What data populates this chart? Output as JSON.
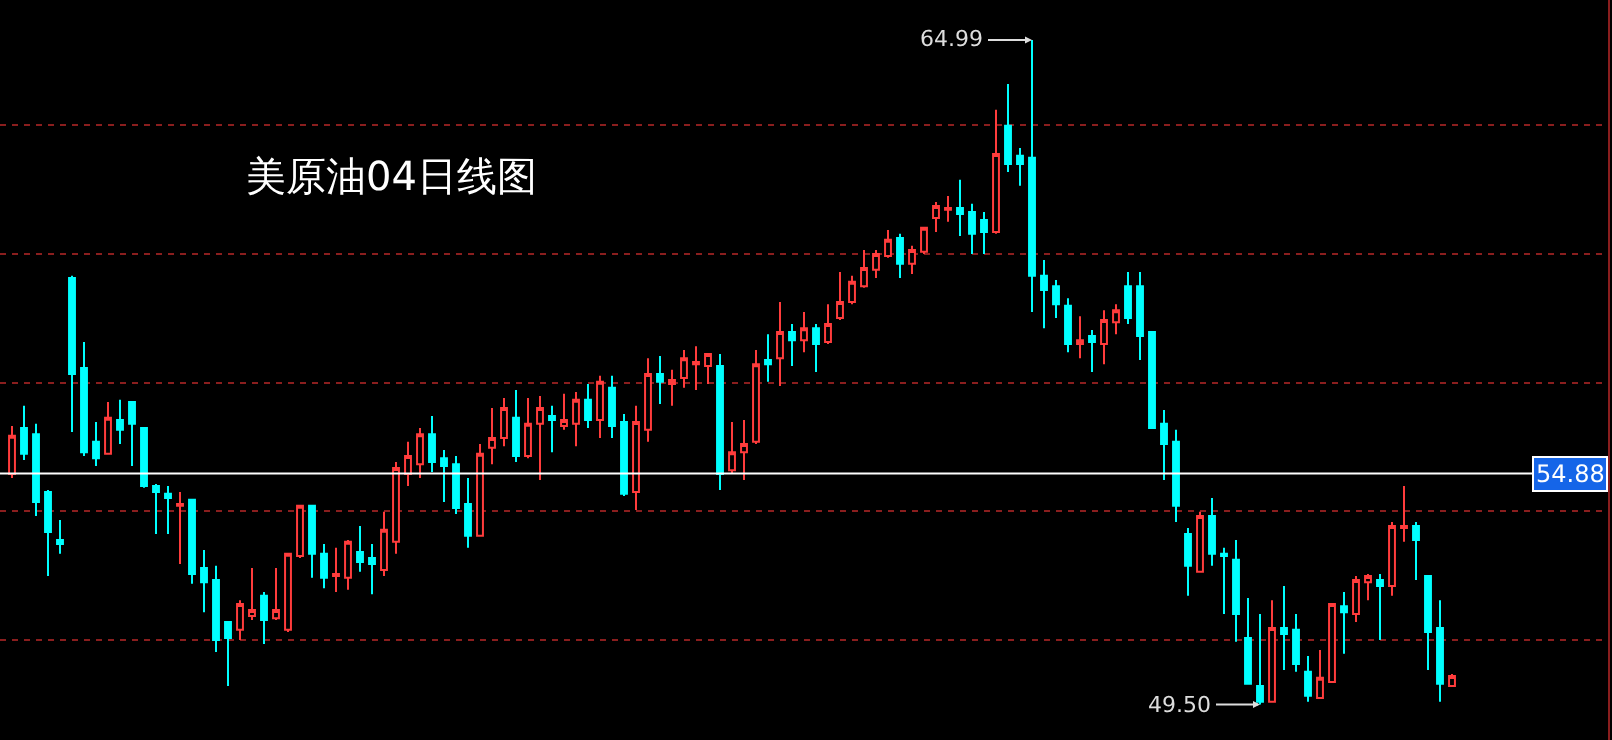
{
  "chart_data": {
    "type": "candlestick",
    "title": "美原油04日线图",
    "categories": [
      null,
      null,
      null,
      null,
      null,
      null,
      null,
      null,
      null,
      null,
      null,
      null,
      null,
      null,
      null,
      null,
      null,
      null,
      null,
      null,
      null,
      null,
      null,
      null,
      null,
      null,
      null,
      null,
      null,
      null,
      null,
      null,
      null,
      null,
      null,
      null,
      null,
      null,
      null,
      null,
      null,
      null,
      null,
      null,
      null,
      null,
      null,
      null,
      null,
      null,
      null,
      null,
      null,
      null,
      null,
      null,
      null,
      null,
      null,
      null,
      null,
      null,
      null,
      null,
      null,
      null,
      null,
      null,
      null,
      null,
      null,
      null,
      null,
      null,
      null,
      null,
      null,
      null,
      null,
      null,
      null,
      null,
      null,
      null,
      null,
      null,
      null,
      null,
      null,
      null,
      null,
      null,
      null,
      null,
      null,
      null,
      null,
      null,
      null,
      null,
      null,
      null,
      null,
      null,
      null,
      null,
      null,
      null,
      null,
      null,
      null,
      null,
      null,
      null,
      null,
      null,
      null,
      null,
      null,
      null,
      null
    ],
    "ohlc": [
      [
        54.87,
        55.99,
        54.78,
        55.76
      ],
      [
        55.94,
        56.46,
        55.2,
        55.34
      ],
      [
        55.8,
        56.04,
        53.89,
        54.22
      ],
      [
        54.45,
        54.5,
        52.49,
        53.52
      ],
      [
        53.33,
        53.8,
        53.01,
        53.24
      ],
      [
        59.44,
        59.49,
        55.85,
        57.2
      ],
      [
        57.34,
        57.95,
        55.29,
        55.38
      ],
      [
        55.62,
        56.08,
        55.06,
        55.24
      ],
      [
        55.34,
        56.55,
        55.34,
        56.18
      ],
      [
        56.13,
        56.6,
        55.57,
        55.9
      ],
      [
        56.55,
        56.55,
        55.06,
        56.04
      ],
      [
        55.94,
        55.94,
        54.55,
        54.59
      ],
      [
        54.59,
        54.64,
        53.47,
        54.45
      ],
      [
        54.41,
        54.59,
        53.47,
        54.31
      ],
      [
        54.13,
        54.45,
        52.77,
        54.17
      ],
      [
        54.27,
        54.27,
        52.31,
        52.54
      ],
      [
        52.68,
        53.1,
        51.65,
        52.35
      ],
      [
        52.4,
        52.73,
        50.72,
        51.0
      ],
      [
        51.42,
        51.42,
        49.93,
        51.05
      ],
      [
        51.24,
        51.93,
        51.0,
        51.84
      ],
      [
        51.56,
        52.68,
        51.47,
        51.7
      ],
      [
        52.03,
        52.12,
        50.91,
        51.47
      ],
      [
        51.51,
        52.68,
        51.47,
        51.7
      ],
      [
        51.24,
        53.01,
        51.19,
        53.01
      ],
      [
        52.96,
        54.13,
        52.91,
        54.13
      ],
      [
        54.13,
        54.13,
        52.45,
        53.01
      ],
      [
        53.01,
        53.24,
        52.21,
        52.45
      ],
      [
        52.49,
        53.15,
        52.12,
        52.54
      ],
      [
        52.45,
        53.33,
        52.17,
        53.29
      ],
      [
        53.05,
        53.66,
        52.59,
        52.82
      ],
      [
        52.91,
        53.24,
        52.07,
        52.77
      ],
      [
        52.63,
        53.99,
        52.49,
        53.57
      ],
      [
        53.29,
        55.15,
        53.01,
        55.01
      ],
      [
        54.87,
        55.62,
        54.59,
        55.29
      ],
      [
        55.1,
        55.94,
        54.78,
        55.8
      ],
      [
        55.8,
        56.22,
        54.92,
        55.15
      ],
      [
        55.24,
        55.43,
        54.22,
        55.06
      ],
      [
        55.1,
        55.29,
        53.94,
        54.08
      ],
      [
        54.17,
        54.78,
        53.15,
        53.43
      ],
      [
        53.43,
        55.57,
        53.43,
        55.34
      ],
      [
        55.48,
        56.41,
        55.1,
        55.71
      ],
      [
        55.71,
        56.64,
        55.52,
        56.41
      ],
      [
        56.18,
        56.83,
        55.15,
        55.29
      ],
      [
        55.29,
        56.64,
        55.24,
        56.04
      ],
      [
        56.04,
        56.69,
        54.73,
        56.41
      ],
      [
        56.22,
        56.46,
        55.38,
        56.13
      ],
      [
        55.99,
        56.74,
        55.9,
        56.13
      ],
      [
        56.04,
        56.78,
        55.52,
        56.6
      ],
      [
        56.6,
        56.97,
        55.94,
        56.13
      ],
      [
        56.13,
        57.16,
        55.71,
        57.02
      ],
      [
        56.88,
        57.16,
        55.71,
        55.99
      ],
      [
        56.08,
        56.27,
        54.36,
        54.41
      ],
      [
        54.45,
        56.46,
        54.03,
        56.08
      ],
      [
        55.9,
        57.57,
        55.62,
        57.2
      ],
      [
        57.2,
        57.62,
        56.5,
        57.02
      ],
      [
        56.97,
        57.3,
        56.46,
        57.06
      ],
      [
        57.11,
        57.76,
        56.88,
        57.57
      ],
      [
        57.43,
        57.85,
        56.83,
        57.48
      ],
      [
        57.39,
        57.67,
        56.97,
        57.67
      ],
      [
        57.39,
        57.67,
        54.5,
        54.87
      ],
      [
        54.96,
        56.08,
        54.87,
        55.38
      ],
      [
        55.38,
        56.13,
        54.73,
        55.57
      ],
      [
        55.62,
        57.76,
        55.57,
        57.43
      ],
      [
        57.53,
        58.13,
        57.02,
        57.43
      ],
      [
        57.57,
        58.88,
        56.92,
        58.18
      ],
      [
        58.18,
        58.37,
        57.39,
        57.99
      ],
      [
        57.99,
        58.65,
        57.71,
        58.27
      ],
      [
        58.27,
        58.37,
        57.25,
        57.9
      ],
      [
        57.95,
        58.83,
        57.9,
        58.37
      ],
      [
        58.51,
        59.58,
        58.46,
        58.88
      ],
      [
        58.88,
        59.49,
        58.83,
        59.35
      ],
      [
        59.25,
        60.09,
        59.21,
        59.67
      ],
      [
        59.63,
        60.09,
        59.44,
        60.0
      ],
      [
        59.95,
        60.56,
        59.91,
        60.33
      ],
      [
        60.37,
        60.47,
        59.44,
        59.77
      ],
      [
        59.77,
        60.19,
        59.53,
        60.09
      ],
      [
        60.05,
        60.61,
        60.0,
        60.61
      ],
      [
        60.84,
        61.21,
        60.51,
        61.12
      ],
      [
        61.03,
        61.35,
        60.75,
        61.07
      ],
      [
        61.07,
        61.73,
        60.42,
        60.93
      ],
      [
        60.98,
        61.17,
        60.0,
        60.47
      ],
      [
        60.79,
        60.98,
        60.0,
        60.51
      ],
      [
        60.51,
        63.36,
        60.47,
        62.33
      ],
      [
        62.99,
        63.96,
        61.91,
        62.1
      ],
      [
        62.29,
        62.47,
        61.59,
        62.1
      ],
      [
        62.24,
        64.99,
        58.65,
        59.49
      ],
      [
        59.49,
        59.86,
        58.27,
        59.16
      ],
      [
        59.25,
        59.39,
        58.51,
        58.83
      ],
      [
        58.79,
        58.97,
        57.71,
        57.9
      ],
      [
        57.9,
        58.55,
        57.57,
        57.99
      ],
      [
        58.09,
        58.23,
        57.25,
        57.95
      ],
      [
        57.9,
        58.69,
        57.43,
        58.46
      ],
      [
        58.41,
        58.83,
        58.13,
        58.69
      ],
      [
        59.25,
        59.58,
        58.37,
        58.51
      ],
      [
        59.25,
        59.58,
        57.53,
        58.09
      ],
      [
        58.18,
        58.18,
        55.94,
        55.94
      ],
      [
        56.04,
        56.36,
        54.73,
        55.57
      ],
      [
        55.62,
        55.9,
        53.75,
        54.13
      ],
      [
        53.47,
        53.61,
        52.03,
        52.73
      ],
      [
        52.59,
        53.99,
        52.59,
        53.89
      ],
      [
        53.89,
        54.31,
        52.73,
        53.01
      ],
      [
        53.01,
        53.15,
        51.61,
        52.96
      ],
      [
        52.87,
        53.33,
        50.96,
        51.61
      ],
      [
        51.05,
        51.98,
        49.98,
        49.98
      ],
      [
        49.93,
        51.61,
        49.5,
        49.56
      ],
      [
        49.56,
        51.93,
        49.56,
        51.28
      ],
      [
        51.28,
        52.26,
        50.3,
        51.14
      ],
      [
        51.24,
        51.61,
        50.26,
        50.44
      ],
      [
        50.26,
        50.63,
        49.56,
        49.7
      ],
      [
        49.65,
        50.77,
        49.65,
        50.12
      ],
      [
        50.02,
        51.84,
        50.02,
        51.84
      ],
      [
        51.79,
        52.12,
        50.68,
        51.65
      ],
      [
        51.61,
        52.49,
        51.42,
        52.4
      ],
      [
        52.35,
        52.54,
        51.93,
        52.49
      ],
      [
        52.4,
        52.54,
        51.0,
        52.26
      ],
      [
        52.26,
        53.75,
        52.03,
        53.66
      ],
      [
        53.61,
        54.59,
        53.29,
        53.66
      ],
      [
        53.66,
        53.75,
        52.4,
        53.33
      ],
      [
        52.49,
        52.49,
        50.3,
        51.19
      ],
      [
        51.28,
        51.93,
        49.56,
        49.98
      ],
      [
        49.93,
        50.21,
        49.93,
        50.16
      ]
    ],
    "colors": [
      "#ff3c3c",
      "#00ffff",
      "#00ffff",
      "#00ffff",
      "#00ffff",
      "#00ffff",
      "#00ffff",
      "#00ffff",
      "#ff3c3c",
      "#00ffff",
      "#00ffff",
      "#00ffff",
      "#00ffff",
      "#00ffff",
      "#ff3c3c",
      "#00ffff",
      "#00ffff",
      "#00ffff",
      "#00ffff",
      "#ff3c3c",
      "#ff3c3c",
      "#00ffff",
      "#ff3c3c",
      "#ff3c3c",
      "#ff3c3c",
      "#00ffff",
      "#00ffff",
      "#ff3c3c",
      "#ff3c3c",
      "#00ffff",
      "#00ffff",
      "#ff3c3c",
      "#ff3c3c",
      "#ff3c3c",
      "#ff3c3c",
      "#00ffff",
      "#00ffff",
      "#00ffff",
      "#00ffff",
      "#ff3c3c",
      "#ff3c3c",
      "#ff3c3c",
      "#00ffff",
      "#ff3c3c",
      "#ff3c3c",
      "#00ffff",
      "#ff3c3c",
      "#ff3c3c",
      "#00ffff",
      "#ff3c3c",
      "#00ffff",
      "#00ffff",
      "#ff3c3c",
      "#ff3c3c",
      "#00ffff",
      "#ff3c3c",
      "#ff3c3c",
      "#ff3c3c",
      "#ff3c3c",
      "#00ffff",
      "#ff3c3c",
      "#ff3c3c",
      "#ff3c3c",
      "#00ffff",
      "#ff3c3c",
      "#00ffff",
      "#ff3c3c",
      "#00ffff",
      "#ff3c3c",
      "#ff3c3c",
      "#ff3c3c",
      "#ff3c3c",
      "#ff3c3c",
      "#ff3c3c",
      "#00ffff",
      "#ff3c3c",
      "#ff3c3c",
      "#ff3c3c",
      "#ff3c3c",
      "#00ffff",
      "#00ffff",
      "#00ffff",
      "#ff3c3c",
      "#00ffff",
      "#00ffff",
      "#00ffff",
      "#00ffff",
      "#00ffff",
      "#00ffff",
      "#ff3c3c",
      "#00ffff",
      "#ff3c3c",
      "#ff3c3c",
      "#00ffff",
      "#00ffff",
      "#00ffff",
      "#00ffff",
      "#00ffff",
      "#00ffff",
      "#ff3c3c",
      "#00ffff",
      "#00ffff",
      "#00ffff",
      "#00ffff",
      "#00ffff",
      "#ff3c3c",
      "#00ffff",
      "#00ffff",
      "#00ffff",
      "#ff3c3c",
      "#ff3c3c",
      "#00ffff",
      "#ff3c3c",
      "#ff3c3c",
      "#00ffff",
      "#ff3c3c",
      "#ff3c3c",
      "#00ffff",
      "#00ffff",
      "#00ffff",
      "#ff3c3c"
    ],
    "ylim": [
      48.67,
      65.92
    ],
    "yticks": [
      {
        "value": 51,
        "label": null
      },
      {
        "value": 54,
        "label": null
      },
      {
        "value": 57,
        "label": null
      },
      {
        "value": 60,
        "label": null
      },
      {
        "value": 63,
        "label": null
      }
    ],
    "grid": "y",
    "ref_lines": [
      {
        "axis": "y",
        "value": 54.88,
        "label": "54.88",
        "color": "#ffffff"
      }
    ],
    "annotations": [
      "64.99",
      "49.50"
    ]
  }
}
